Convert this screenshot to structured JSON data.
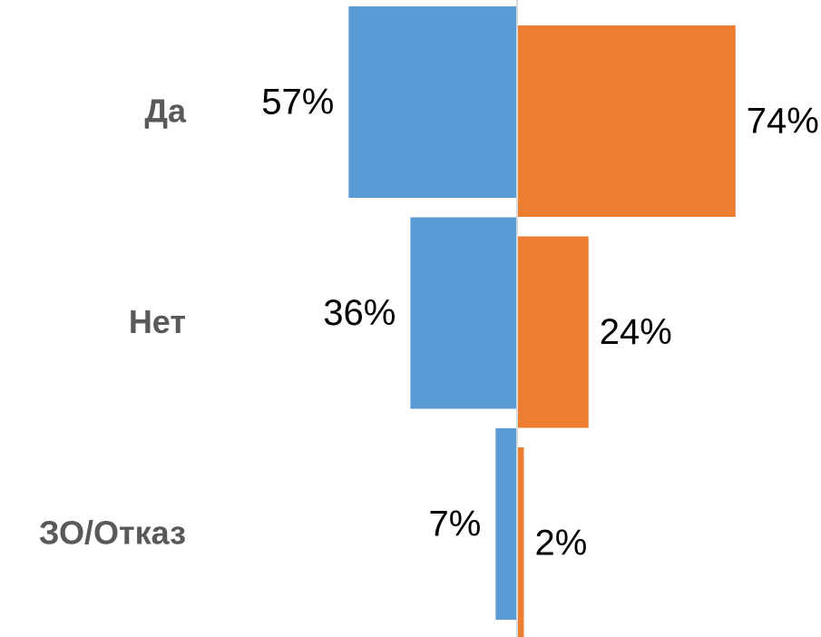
{
  "chart_data": {
    "type": "bar",
    "orientation": "diverging",
    "categories": [
      "Да",
      "Нет",
      "ЗО/Отказ"
    ],
    "series": [
      {
        "color": "#5b9bd5",
        "values": [
          57,
          36,
          7
        ],
        "value_labels": [
          "57%",
          "36%",
          "7%"
        ]
      },
      {
        "color": "#ed7d31",
        "values": [
          74,
          24,
          2
        ],
        "value_labels": [
          "74%",
          "24%",
          "2%"
        ]
      }
    ]
  }
}
